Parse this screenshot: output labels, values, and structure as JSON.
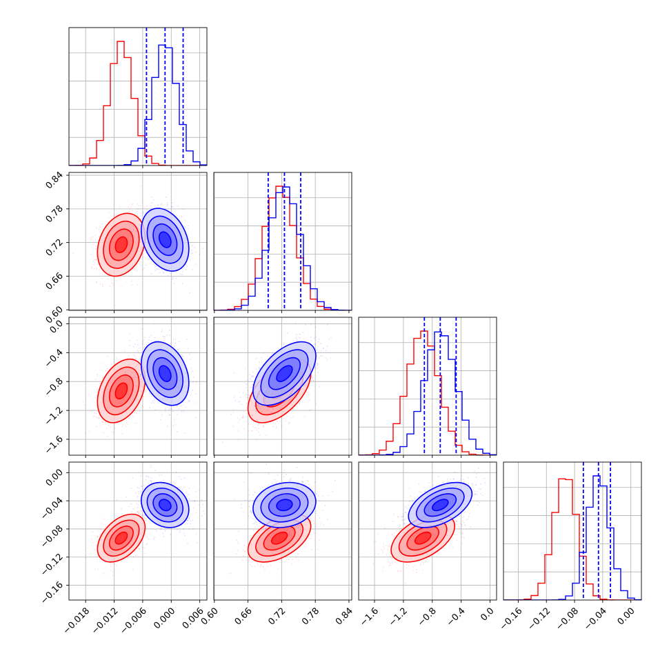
{
  "chart_data": {
    "type": "corner",
    "parameters": [
      {
        "range": [
          -0.0215,
          0.0075
        ],
        "ticks": [
          -0.018,
          -0.012,
          -0.006,
          0.0,
          0.006
        ],
        "tick_labels": [
          "−0.018",
          "−0.012",
          "−0.006",
          "0.000",
          "0.006"
        ]
      },
      {
        "range": [
          0.599,
          0.845
        ],
        "ticks": [
          0.6,
          0.66,
          0.72,
          0.78,
          0.84
        ],
        "tick_labels": [
          "0.60",
          "0.66",
          "0.72",
          "0.78",
          "0.84"
        ]
      },
      {
        "range": [
          -1.82,
          0.09
        ],
        "ticks": [
          -1.6,
          -1.2,
          -0.8,
          -0.4,
          0.0
        ],
        "tick_labels": [
          "−1.6",
          "−1.2",
          "−0.8",
          "−0.4",
          "0.0"
        ]
      },
      {
        "range": [
          -0.181,
          0.015
        ],
        "ticks": [
          -0.16,
          -0.12,
          -0.08,
          -0.04,
          0.0
        ],
        "tick_labels": [
          "−0.16",
          "−0.12",
          "−0.08",
          "−0.04",
          "0.00"
        ]
      }
    ],
    "series": [
      {
        "color": "#ff0000",
        "mean": [
          -0.0105,
          0.716,
          -0.93,
          -0.093
        ],
        "sd": [
          0.0025,
          0.028,
          0.22,
          0.017
        ],
        "corr": {
          "0-1": 0.25,
          "0-2": 0.35,
          "0-3": 0.45,
          "1-2": 0.55,
          "1-3": 0.5,
          "2-3": 0.5
        }
      },
      {
        "color": "#0000ff",
        "mean": [
          -0.0013,
          0.725,
          -0.69,
          -0.046
        ],
        "sd": [
          0.0025,
          0.028,
          0.22,
          0.016
        ],
        "corr": {
          "0-1": -0.3,
          "0-2": -0.3,
          "0-3": -0.2,
          "1-2": 0.55,
          "1-3": 0.15,
          "2-3": 0.5
        }
      }
    ],
    "quantile_lines": {
      "color": "#0000ff",
      "style": "dashed",
      "values": [
        [
          -0.0052,
          -0.0013,
          0.0025
        ],
        [
          0.696,
          0.725,
          0.754
        ],
        [
          -0.91,
          -0.69,
          -0.47
        ],
        [
          -0.0675,
          -0.046,
          -0.029
        ]
      ]
    },
    "grid": true
  }
}
